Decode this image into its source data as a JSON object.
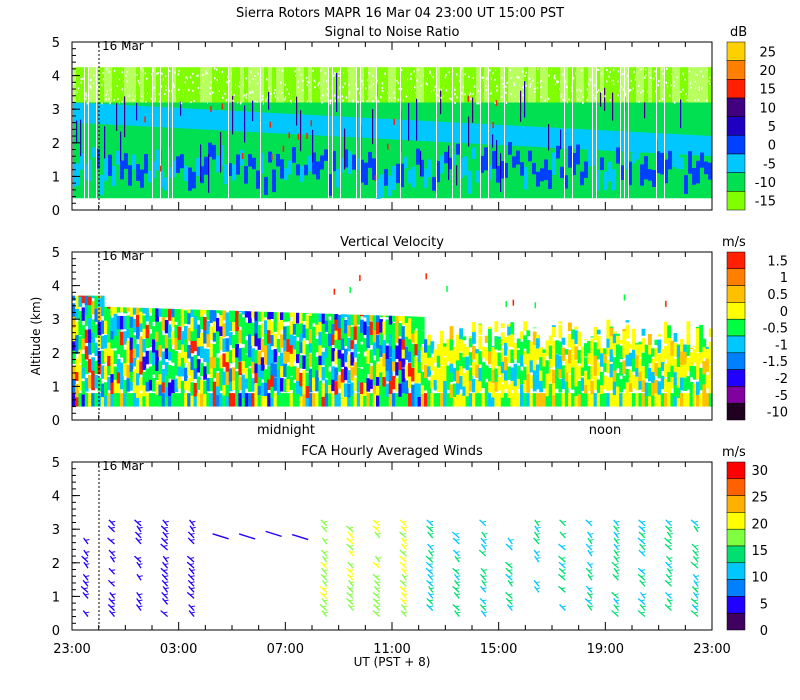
{
  "header": {
    "line1": "Sierra Rotors   MAPR 16 Mar 04   23:00 UT   15:00   PST",
    "snr_title": "Signal to Noise Ratio",
    "vv_title": "Vertical Velocity",
    "fca_title": "FCA Hourly Averaged Winds"
  },
  "colors": {
    "scale_snr": [
      "#7fff00",
      "#00e050",
      "#00c8ff",
      "#0040ff",
      "#2000c0",
      "#400080",
      "#ff2000",
      "#ff8000",
      "#ffd000"
    ],
    "scale_vv": [
      "#200020",
      "#8000a0",
      "#2000ff",
      "#0080ff",
      "#00c8ff",
      "#00ff40",
      "#ffff00",
      "#ffc000",
      "#ff8000",
      "#ff2000"
    ],
    "scale_fca": [
      "#400060",
      "#2000ff",
      "#0080ff",
      "#00c8ff",
      "#00e070",
      "#80ff40",
      "#ffff00",
      "#ffb000",
      "#ff6000",
      "#ff0000"
    ]
  },
  "chart_data": [
    {
      "type": "heatmap",
      "title": "Signal to Noise Ratio",
      "ylabel": "",
      "ylim": [
        0,
        5
      ],
      "yticks": [
        "0",
        "1",
        "2",
        "3",
        "4",
        "5"
      ],
      "date_marker": "16 Mar",
      "colorbar": {
        "unit": "dB",
        "labels": [
          "25",
          "20",
          "15",
          "10",
          "5",
          "0",
          "-5",
          "-10",
          "-15"
        ]
      }
    },
    {
      "type": "heatmap",
      "title": "Vertical Velocity",
      "ylabel": "Altitude (km)",
      "ylim": [
        0,
        5
      ],
      "yticks": [
        "0",
        "1",
        "2",
        "3",
        "4",
        "5"
      ],
      "date_marker": "16 Mar",
      "labels_inside": [
        "midnight",
        "noon"
      ],
      "colorbar": {
        "unit": "m/s",
        "labels": [
          "1.5",
          "1",
          "0.5",
          "0",
          "-0.5",
          "-1",
          "-1.5",
          "-2",
          "-5",
          "-10"
        ]
      }
    },
    {
      "type": "scatter",
      "title": "FCA Hourly Averaged Winds",
      "ylim": [
        0,
        5
      ],
      "yticks": [
        "0",
        "1",
        "2",
        "3",
        "4",
        "5"
      ],
      "date_marker": "16 Mar",
      "xlabel": "UT   (PST + 8)",
      "xtick_labels": [
        "23:00",
        "03:00",
        "07:00",
        "11:00",
        "15:00",
        "19:00",
        "23:00"
      ],
      "colorbar": {
        "unit": "m/s",
        "labels": [
          "30",
          "25",
          "20",
          "15",
          "10",
          "5",
          "0"
        ]
      }
    }
  ]
}
